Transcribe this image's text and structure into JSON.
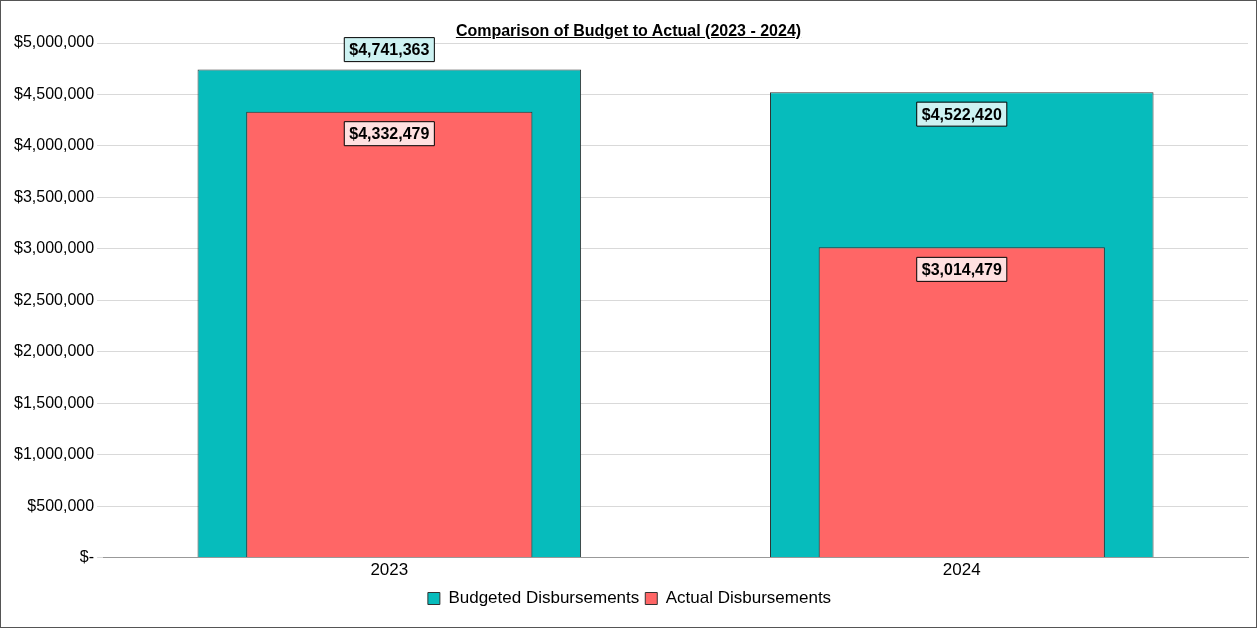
{
  "chart_data": {
    "type": "bar",
    "title": "Comparison of Budget to Actual (2023 - 2024)",
    "categories": [
      "2023",
      "2024"
    ],
    "series": [
      {
        "name": "Budgeted Disbursements",
        "color": "#06bcbc",
        "values": [
          4741363,
          4522420
        ],
        "value_labels": [
          "$4,741,363",
          "$4,522,420"
        ]
      },
      {
        "name": "Actual Disbursements",
        "color": "#ff6666",
        "values": [
          4332479,
          3014479
        ],
        "value_labels": [
          "$4,332,479",
          "$3,014,479"
        ]
      }
    ],
    "ylim": [
      0,
      5000000
    ],
    "yticks": [
      {
        "value": 0,
        "label": "$-"
      },
      {
        "value": 500000,
        "label": "$500,000"
      },
      {
        "value": 1000000,
        "label": "$1,000,000"
      },
      {
        "value": 1500000,
        "label": "$1,500,000"
      },
      {
        "value": 2000000,
        "label": "$2,000,000"
      },
      {
        "value": 2500000,
        "label": "$2,500,000"
      },
      {
        "value": 3000000,
        "label": "$3,000,000"
      },
      {
        "value": 3500000,
        "label": "$3,500,000"
      },
      {
        "value": 4000000,
        "label": "$4,000,000"
      },
      {
        "value": 4500000,
        "label": "$4,500,000"
      },
      {
        "value": 5000000,
        "label": "$5,000,000"
      }
    ],
    "grid": "y",
    "legend": "bottom"
  }
}
